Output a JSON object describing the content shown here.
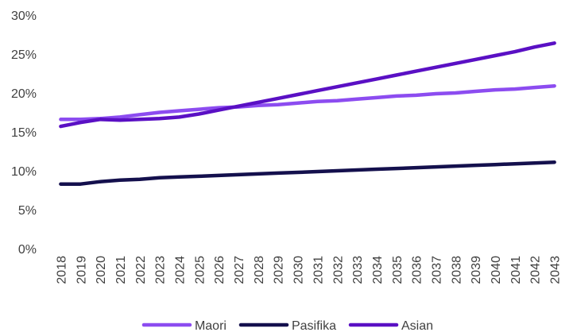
{
  "chart_data": {
    "type": "line",
    "title": "",
    "xlabel": "",
    "ylabel": "",
    "ylim": [
      0,
      30
    ],
    "ytick_labels": [
      "0%",
      "5%",
      "10%",
      "15%",
      "20%",
      "25%",
      "30%"
    ],
    "grid": false,
    "legend_position": "bottom",
    "categories": [
      "2018",
      "2019",
      "2020",
      "2021",
      "2022",
      "2023",
      "2024",
      "2025",
      "2026",
      "2027",
      "2028",
      "2029",
      "2030",
      "2031",
      "2032",
      "2033",
      "2034",
      "2035",
      "2036",
      "2037",
      "2038",
      "2039",
      "2040",
      "2041",
      "2042",
      "2043"
    ],
    "series": [
      {
        "name": "Maori",
        "color": "#8c4cf0",
        "values": [
          16.6,
          16.6,
          16.7,
          16.9,
          17.2,
          17.5,
          17.7,
          17.9,
          18.1,
          18.2,
          18.4,
          18.5,
          18.7,
          18.9,
          19.0,
          19.2,
          19.4,
          19.6,
          19.7,
          19.9,
          20.0,
          20.2,
          20.4,
          20.5,
          20.7,
          20.9
        ]
      },
      {
        "name": "Pasifika",
        "color": "#14104d",
        "values": [
          8.3,
          8.3,
          8.6,
          8.8,
          8.9,
          9.1,
          9.2,
          9.3,
          9.4,
          9.5,
          9.6,
          9.7,
          9.8,
          9.9,
          10.0,
          10.1,
          10.2,
          10.3,
          10.4,
          10.5,
          10.6,
          10.7,
          10.8,
          10.9,
          11.0,
          11.1
        ]
      },
      {
        "name": "Asian",
        "color": "#5a10c4",
        "values": [
          15.7,
          16.2,
          16.6,
          16.5,
          16.6,
          16.7,
          16.9,
          17.3,
          17.8,
          18.3,
          18.8,
          19.3,
          19.8,
          20.3,
          20.8,
          21.3,
          21.8,
          22.3,
          22.8,
          23.3,
          23.8,
          24.3,
          24.8,
          25.3,
          25.9,
          26.4
        ]
      }
    ]
  }
}
